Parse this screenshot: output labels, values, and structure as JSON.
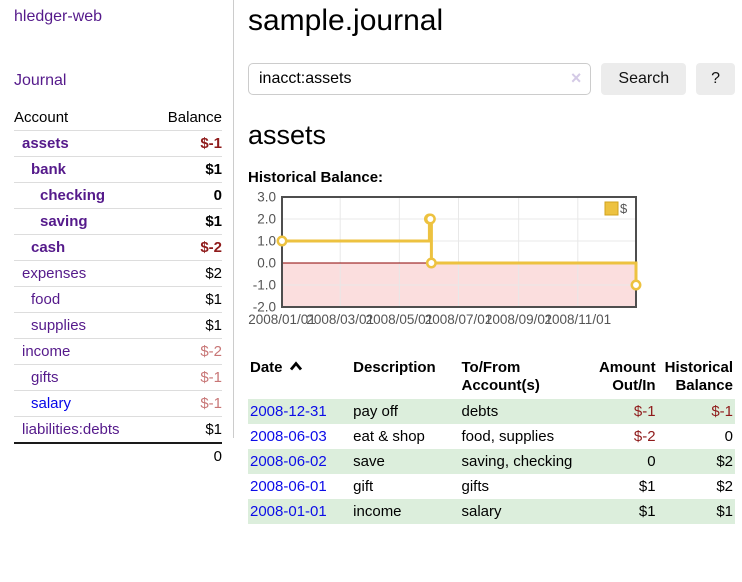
{
  "app": {
    "brand": "hledger-web"
  },
  "sidebar": {
    "nav_journal": "Journal",
    "accounts": {
      "header_account": "Account",
      "header_balance": "Balance",
      "rows": [
        {
          "name": "assets",
          "balance": "$-1",
          "indent": 1,
          "bold": true,
          "balance_color": "neg"
        },
        {
          "name": "bank",
          "balance": "$1",
          "indent": 2,
          "bold": true,
          "balance_color": "normal"
        },
        {
          "name": "checking",
          "balance": "0",
          "indent": 3,
          "bold": true,
          "balance_color": "normal"
        },
        {
          "name": "saving",
          "balance": "$1",
          "indent": 3,
          "bold": true,
          "balance_color": "normal"
        },
        {
          "name": "cash",
          "balance": "$-2",
          "indent": 2,
          "bold": true,
          "balance_color": "neg"
        },
        {
          "name": "expenses",
          "balance": "$2",
          "indent": 1,
          "bold": false,
          "balance_color": "normal"
        },
        {
          "name": "food",
          "balance": "$1",
          "indent": 2,
          "bold": false,
          "balance_color": "normal"
        },
        {
          "name": "supplies",
          "balance": "$1",
          "indent": 2,
          "bold": false,
          "balance_color": "normal"
        },
        {
          "name": "income",
          "balance": "$-2",
          "indent": 1,
          "bold": false,
          "balance_color": "dimneg"
        },
        {
          "name": "gifts",
          "balance": "$-1",
          "indent": 2,
          "bold": false,
          "balance_color": "dimneg"
        },
        {
          "name": "salary",
          "balance": "$-1",
          "indent": 2,
          "bold": false,
          "balance_color": "dimneg",
          "link_color": "unvisited"
        },
        {
          "name": "liabilities:debts",
          "balance": "$1",
          "indent": 1,
          "bold": false,
          "balance_color": "normal"
        }
      ],
      "total": "0"
    }
  },
  "main": {
    "title": "sample.journal",
    "search": {
      "value": "inacct:assets",
      "clear_icon": "×",
      "search_button": "Search",
      "help_button": "?"
    },
    "account_heading": "assets",
    "chart_label": "Historical Balance:"
  },
  "chart_data": {
    "type": "line",
    "step": true,
    "title": "Historical Balance:",
    "series": [
      {
        "name": "$",
        "color": "#edc240",
        "points": [
          [
            "2008-01-01",
            1
          ],
          [
            "2008-06-01",
            2
          ],
          [
            "2008-06-02",
            2
          ],
          [
            "2008-06-03",
            0
          ],
          [
            "2008-12-31",
            -1
          ]
        ]
      }
    ],
    "x_ticks": [
      "2008/01/01",
      "2008/03/01",
      "2008/05/01",
      "2008/07/01",
      "2008/09/01",
      "2008/11/01"
    ],
    "y_ticks": [
      3.0,
      2.0,
      1.0,
      0.0,
      -1.0,
      -2.0
    ],
    "xlim": [
      "2008-01-01",
      "2008-12-31"
    ],
    "ylim": [
      -2.0,
      3.0
    ],
    "grid": true,
    "legend": {
      "label": "$",
      "position": "top-right"
    },
    "zero_line_color": "#8b0000",
    "negative_region_color": "#fbdede",
    "tick_label_color": "#545454"
  },
  "register": {
    "headers": {
      "date": "Date",
      "description": "Description",
      "accounts": "To/From Account(s)",
      "amount": "Amount Out/In",
      "balance": "Historical Balance"
    },
    "rows": [
      {
        "date": "2008-12-31",
        "description": "pay off",
        "accounts": "debts",
        "amount": "$-1",
        "amount_color": "neg",
        "balance": "$-1",
        "balance_color": "neg"
      },
      {
        "date": "2008-06-03",
        "description": "eat & shop",
        "accounts": "food, supplies",
        "amount": "$-2",
        "amount_color": "neg",
        "balance": "0",
        "balance_color": "normal"
      },
      {
        "date": "2008-06-02",
        "description": "save",
        "accounts": "saving, checking",
        "amount": "0",
        "amount_color": "normal",
        "balance": "$2",
        "balance_color": "normal"
      },
      {
        "date": "2008-06-01",
        "description": "gift",
        "accounts": "gifts",
        "amount": "$1",
        "amount_color": "normal",
        "balance": "$2",
        "balance_color": "normal"
      },
      {
        "date": "2008-01-01",
        "description": "income",
        "accounts": "salary",
        "amount": "$1",
        "amount_color": "normal",
        "balance": "$1",
        "balance_color": "normal"
      }
    ]
  }
}
